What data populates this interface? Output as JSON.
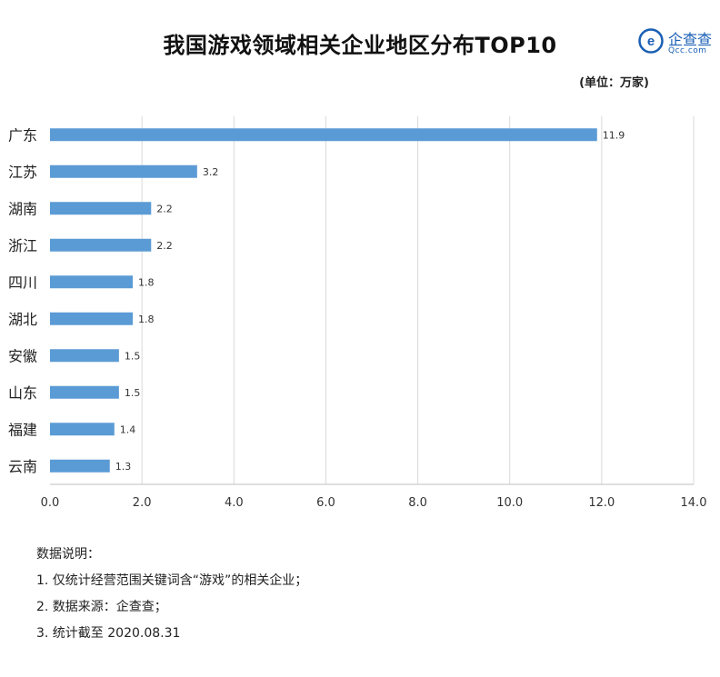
{
  "header": {
    "title": "我国游戏领域相关企业地区分布TOP10",
    "unit": "(单位：万家)",
    "logo_name": "企查查",
    "logo_domain": "Qcc.com",
    "logo_mark": "e"
  },
  "chart_data": {
    "type": "bar",
    "orientation": "horizontal",
    "categories": [
      "广东",
      "江苏",
      "湖南",
      "浙江",
      "四川",
      "湖北",
      "安徽",
      "山东",
      "福建",
      "云南"
    ],
    "values": [
      11.9,
      3.2,
      2.2,
      2.2,
      1.8,
      1.8,
      1.5,
      1.5,
      1.4,
      1.3
    ],
    "value_labels": [
      "11.9",
      "3.2",
      "2.2",
      "2.2",
      "1.8",
      "1.8",
      "1.5",
      "1.5",
      "1.4",
      "1.3"
    ],
    "xlim": [
      0,
      14
    ],
    "x_ticks": [
      "0.0",
      "2.0",
      "4.0",
      "6.0",
      "8.0",
      "10.0",
      "12.0",
      "14.0"
    ],
    "x_tick_values": [
      0,
      2,
      4,
      6,
      8,
      10,
      12,
      14
    ],
    "grid": "vertical",
    "legend": "none",
    "bar_color": "#5b9bd5"
  },
  "notes": {
    "heading": "数据说明：",
    "items": [
      "1. 仅统计经营范围关键词含“游戏”的相关企业；",
      "2. 数据来源：企查查；",
      "3. 统计截至 2020.08.31"
    ]
  },
  "colors": {
    "bar": "#5b9bd5",
    "grid": "#d9d9d9",
    "axis": "#bfbfbf",
    "brand": "#1a5fb4"
  }
}
